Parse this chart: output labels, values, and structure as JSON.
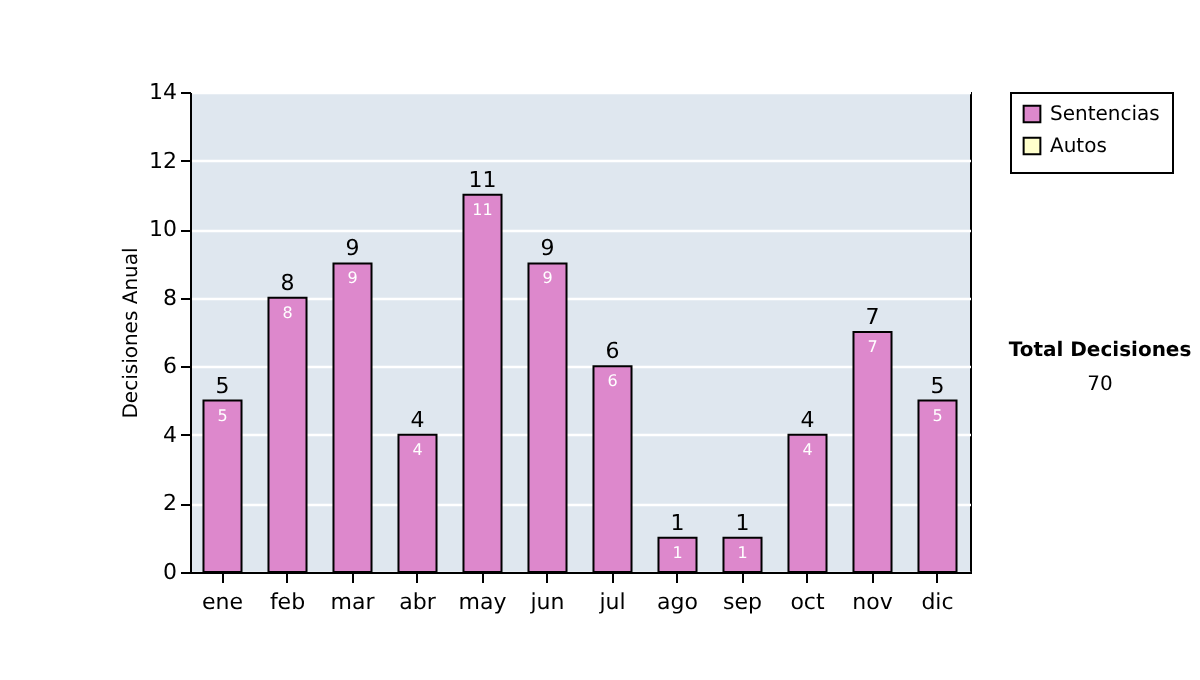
{
  "chart_data": {
    "type": "bar",
    "ylabel": "Decisiones Anual",
    "categories": [
      "ene",
      "feb",
      "mar",
      "abr",
      "may",
      "jun",
      "jul",
      "ago",
      "sep",
      "oct",
      "nov",
      "dic"
    ],
    "series": [
      {
        "name": "Sentencias",
        "color": "#dd88cc",
        "values": [
          5,
          8,
          9,
          4,
          11,
          9,
          6,
          1,
          1,
          4,
          7,
          5
        ],
        "value_labels": [
          "5",
          "8",
          "9",
          "4",
          "11",
          "9",
          "6",
          "1",
          "1",
          "4",
          "7",
          "5"
        ]
      },
      {
        "name": "Autos",
        "color": "#ffffcc",
        "values": [
          null,
          null,
          null,
          null,
          null,
          null,
          null,
          null,
          null,
          null,
          null,
          null
        ]
      }
    ],
    "totals": [
      "5",
      "8",
      "9",
      "4",
      "11",
      "9",
      "6",
      "1",
      "1",
      "4",
      "7",
      "5"
    ],
    "ylim": [
      0,
      14
    ],
    "yticks": [
      0,
      2,
      4,
      6,
      8,
      10,
      12,
      14
    ],
    "grid": "y",
    "legend": "right",
    "annotations": [
      "Total Decisiones",
      "70"
    ]
  }
}
